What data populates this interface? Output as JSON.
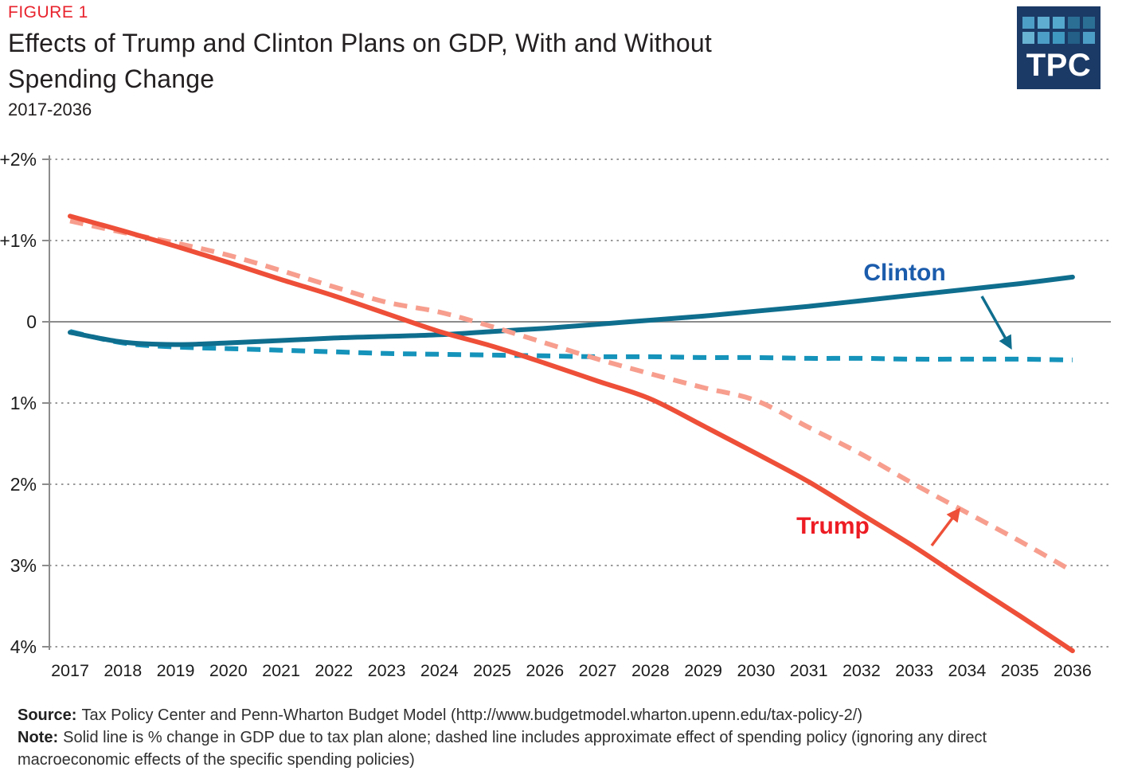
{
  "header": {
    "figure_label": "FIGURE 1",
    "figure_label_color": "#e8232d",
    "title_line1": "Effects of Trump and Clinton Plans on GDP, With and Without",
    "title_line2": "Spending Change",
    "subtitle": "2017-2036"
  },
  "logo": {
    "text": "TPC",
    "background": "#1b3a66",
    "grid_colors": [
      [
        "#4d9ec6",
        "#5fadd0",
        "#55a8cd",
        "#2b6f95",
        "#2b6f95"
      ],
      [
        "#68b2d2",
        "#4d9ec6",
        "#3f98c0",
        "#235f86",
        "#4d9ec6"
      ]
    ]
  },
  "chart_data": {
    "type": "line",
    "title": "Effects of Trump and Clinton Plans on GDP, With and Without Spending Change",
    "xlabel": "",
    "ylabel": "% change in GDP",
    "ylim": [
      -4,
      2
    ],
    "grid": "horizontal-dotted",
    "legend_position": "inline-annotations",
    "x": [
      2017,
      2018,
      2019,
      2020,
      2021,
      2022,
      2023,
      2024,
      2025,
      2026,
      2027,
      2028,
      2029,
      2030,
      2031,
      2032,
      2033,
      2034,
      2035,
      2036
    ],
    "series": [
      {
        "name": "Clinton - with spending change",
        "key": "clinton_with_spending",
        "style": "dashed",
        "color": "#1593ba",
        "values": [
          -0.12,
          -0.26,
          -0.31,
          -0.33,
          -0.35,
          -0.37,
          -0.39,
          -0.4,
          -0.41,
          -0.42,
          -0.43,
          -0.43,
          -0.44,
          -0.44,
          -0.45,
          -0.45,
          -0.46,
          -0.46,
          -0.46,
          -0.47
        ]
      },
      {
        "name": "Clinton - tax plan alone",
        "key": "clinton_tax_only",
        "style": "solid",
        "color": "#0f6e8e",
        "values": [
          -0.13,
          -0.25,
          -0.28,
          -0.26,
          -0.23,
          -0.2,
          -0.18,
          -0.16,
          -0.12,
          -0.08,
          -0.03,
          0.02,
          0.07,
          0.13,
          0.19,
          0.26,
          0.33,
          0.4,
          0.47,
          0.55
        ]
      },
      {
        "name": "Trump - with spending change",
        "key": "trump_with_spending",
        "style": "dashed",
        "color": "#f79e8e",
        "values": [
          1.24,
          1.1,
          0.97,
          0.82,
          0.63,
          0.43,
          0.24,
          0.12,
          -0.06,
          -0.26,
          -0.46,
          -0.64,
          -0.81,
          -0.97,
          -1.3,
          -1.63,
          -2.0,
          -2.35,
          -2.7,
          -3.07
        ]
      },
      {
        "name": "Trump - tax plan alone",
        "key": "trump_tax_only",
        "style": "solid",
        "color": "#ee4f38",
        "values": [
          1.3,
          1.12,
          0.93,
          0.73,
          0.52,
          0.32,
          0.1,
          -0.12,
          -0.3,
          -0.51,
          -0.73,
          -0.95,
          -1.28,
          -1.62,
          -1.97,
          -2.37,
          -2.77,
          -3.2,
          -3.62,
          -4.05
        ]
      }
    ],
    "yticks": [
      {
        "label": "+2%",
        "value": 2
      },
      {
        "label": "+1%",
        "value": 1
      },
      {
        "label": "0",
        "value": 0
      },
      {
        "label": "1%",
        "value": -1
      },
      {
        "label": "2%",
        "value": -2
      },
      {
        "label": "3%",
        "value": -3
      },
      {
        "label": "4%",
        "value": -4
      }
    ],
    "annotations": [
      {
        "text": "Clinton",
        "color": "#1b5cac",
        "arrow_color": "#0f6e8e"
      },
      {
        "text": "Trump",
        "color": "#ed1c24",
        "arrow_color": "#ee4f38"
      }
    ]
  },
  "footer": {
    "source_label": "Source:",
    "source_text": "Tax Policy Center and Penn-Wharton Budget Model (http://www.budgetmodel.wharton.upenn.edu/tax-policy-2/)",
    "note_label": "Note:",
    "note_text": "Solid line is % change in GDP due to tax plan alone; dashed line includes approximate effect of spending policy (ignoring any direct macroeconomic effects of the specific spending policies)"
  }
}
